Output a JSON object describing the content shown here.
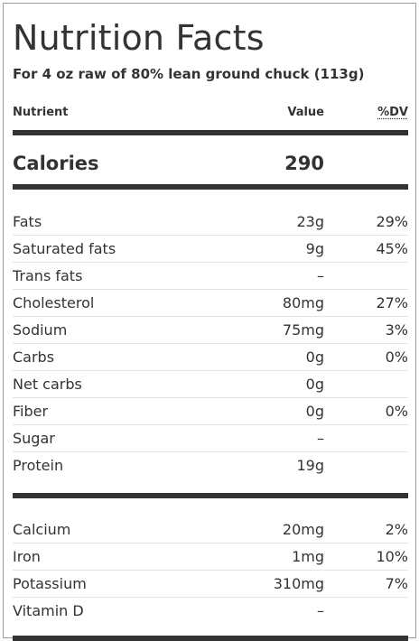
{
  "title": "Nutrition Facts",
  "serving": "For 4 oz raw of 80% lean ground chuck (113g)",
  "headers": {
    "nutrient": "Nutrient",
    "value": "Value",
    "dv": "%DV"
  },
  "calories": {
    "label": "Calories",
    "value": "290"
  },
  "macros": [
    {
      "name": "Fats",
      "value": "23g",
      "dv": "29%"
    },
    {
      "name": "Saturated fats",
      "value": "9g",
      "dv": "45%"
    },
    {
      "name": "Trans fats",
      "value": "–",
      "dv": ""
    },
    {
      "name": "Cholesterol",
      "value": "80mg",
      "dv": "27%"
    },
    {
      "name": "Sodium",
      "value": "75mg",
      "dv": "3%"
    },
    {
      "name": "Carbs",
      "value": "0g",
      "dv": "0%"
    },
    {
      "name": "Net carbs",
      "value": "0g",
      "dv": ""
    },
    {
      "name": "Fiber",
      "value": "0g",
      "dv": "0%"
    },
    {
      "name": "Sugar",
      "value": "–",
      "dv": ""
    },
    {
      "name": "Protein",
      "value": "19g",
      "dv": ""
    }
  ],
  "minerals": [
    {
      "name": "Calcium",
      "value": "20mg",
      "dv": "2%"
    },
    {
      "name": "Iron",
      "value": "1mg",
      "dv": "10%"
    },
    {
      "name": "Potassium",
      "value": "310mg",
      "dv": "7%"
    },
    {
      "name": "Vitamin D",
      "value": "–",
      "dv": ""
    }
  ]
}
